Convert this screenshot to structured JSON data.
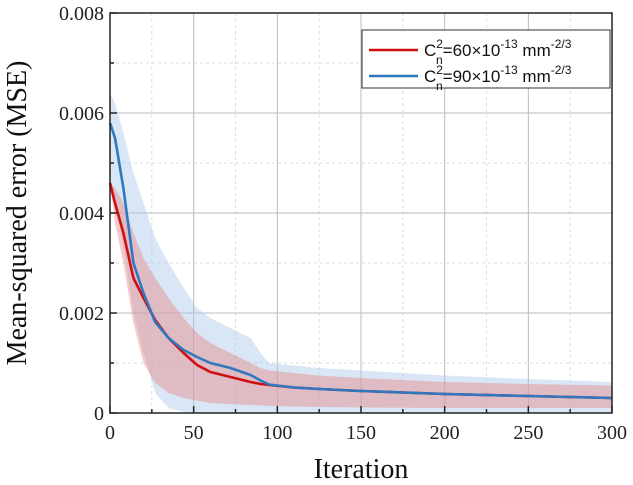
{
  "chart_data": {
    "type": "line",
    "title": "",
    "xlabel": "Iteration",
    "ylabel": "Mean-squared error (MSE)",
    "xlim": [
      0,
      300
    ],
    "ylim": [
      0,
      0.008
    ],
    "xticks": [
      0,
      50,
      100,
      150,
      200,
      250,
      300
    ],
    "xtick_labels": [
      "0",
      "50",
      "100",
      "150",
      "200",
      "250",
      "300"
    ],
    "yticks": [
      0,
      0.002,
      0.004,
      0.006,
      0.008
    ],
    "ytick_labels": [
      "0",
      "0.002",
      "0.004",
      "0.006",
      "0.008"
    ],
    "grid": true,
    "legend_position": "top-right",
    "x": [
      0,
      3,
      8,
      14,
      20,
      27,
      35,
      44,
      52,
      60,
      72,
      84,
      90,
      95,
      110,
      125,
      150,
      200,
      250,
      300
    ],
    "series": [
      {
        "name": "Cn2=60×10-13 mm-2/3",
        "legend_parts": {
          "base": "C",
          "sup1": "2",
          "sub": "n",
          "mid": "=60×10",
          "sup2": "-13",
          "unit": " mm",
          "sup3": "-2/3"
        },
        "color": "#d01010",
        "band_color": "#e88a8a",
        "values": [
          0.0046,
          0.0042,
          0.0036,
          0.0027,
          0.0023,
          0.00186,
          0.0015,
          0.0012,
          0.00096,
          0.00082,
          0.00072,
          0.00062,
          0.00058,
          0.00056,
          0.00051,
          0.00048,
          0.00044,
          0.00038,
          0.00034,
          0.0003
        ],
        "upper": [
          0.0046,
          0.0045,
          0.0042,
          0.0036,
          0.0031,
          0.0027,
          0.0023,
          0.0019,
          0.0016,
          0.0014,
          0.0012,
          0.001,
          0.0009,
          0.00085,
          0.0008,
          0.00075,
          0.0007,
          0.00062,
          0.00058,
          0.00055
        ],
        "lower": [
          0.0046,
          0.0038,
          0.003,
          0.0018,
          0.001,
          0.0006,
          0.0004,
          0.0003,
          0.00025,
          0.0002,
          0.00018,
          0.00016,
          0.00015,
          0.00014,
          0.00013,
          0.00012,
          0.00011,
          0.0001,
          0.0001,
          0.0001
        ]
      },
      {
        "name": "Cn2=90×10-13 mm-2/3",
        "legend_parts": {
          "base": "C",
          "sup1": "2",
          "sub": "n",
          "mid": "=90×10",
          "sup2": "-13",
          "unit": " mm",
          "sup3": "-2/3"
        },
        "color": "#2f78c0",
        "band_color": "#a9c8e8",
        "values": [
          0.0058,
          0.0055,
          0.0045,
          0.003,
          0.0024,
          0.00182,
          0.0015,
          0.00126,
          0.00112,
          0.001,
          0.0009,
          0.00076,
          0.00065,
          0.00057,
          0.00051,
          0.00048,
          0.00044,
          0.00038,
          0.00034,
          0.0003
        ],
        "upper": [
          0.0064,
          0.0062,
          0.0056,
          0.0048,
          0.0042,
          0.0035,
          0.003,
          0.0025,
          0.0021,
          0.0019,
          0.0017,
          0.0015,
          0.0012,
          0.001,
          0.00095,
          0.0009,
          0.00085,
          0.00075,
          0.00068,
          0.00062
        ],
        "lower": [
          0.0046,
          0.0043,
          0.0033,
          0.002,
          0.0012,
          0.0004,
          0.0001,
          2e-05,
          0,
          0,
          0,
          0,
          0,
          0,
          0,
          0,
          0,
          0,
          0,
          0
        ]
      }
    ]
  }
}
